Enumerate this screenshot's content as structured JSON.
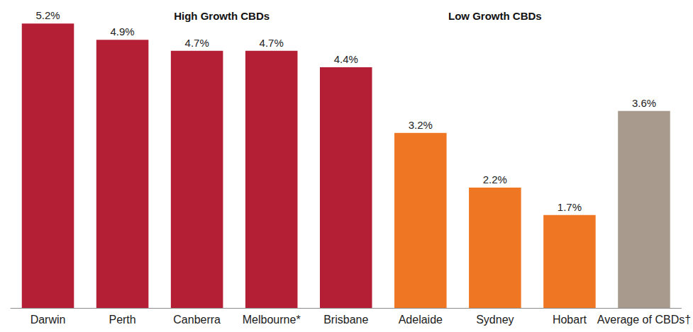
{
  "chart_data": {
    "type": "bar",
    "categories": [
      "Darwin",
      "Perth",
      "Canberra",
      "Melbourne*",
      "Brisbane",
      "Adelaide",
      "Sydney",
      "Hobart",
      "Average of CBDs†"
    ],
    "values": [
      5.2,
      4.9,
      4.7,
      4.7,
      4.4,
      3.2,
      2.2,
      1.7,
      3.6
    ],
    "value_labels": [
      "5.2%",
      "4.9%",
      "4.7%",
      "4.7%",
      "4.4%",
      "3.2%",
      "2.2%",
      "1.7%",
      "3.6%"
    ],
    "colors": [
      "#b41f35",
      "#b41f35",
      "#b41f35",
      "#b41f35",
      "#b41f35",
      "#ef7622",
      "#ef7622",
      "#ef7622",
      "#a89a8d"
    ],
    "groups": [
      {
        "label": "High Growth CBDs",
        "categories": [
          "Darwin",
          "Perth",
          "Canberra",
          "Melbourne*",
          "Brisbane"
        ]
      },
      {
        "label": "Low Growth CBDs",
        "categories": [
          "Adelaide",
          "Sydney",
          "Hobart"
        ]
      }
    ],
    "ylim": [
      0,
      5.5
    ],
    "data_labels": true,
    "tick_labels": "x",
    "grid": false
  }
}
